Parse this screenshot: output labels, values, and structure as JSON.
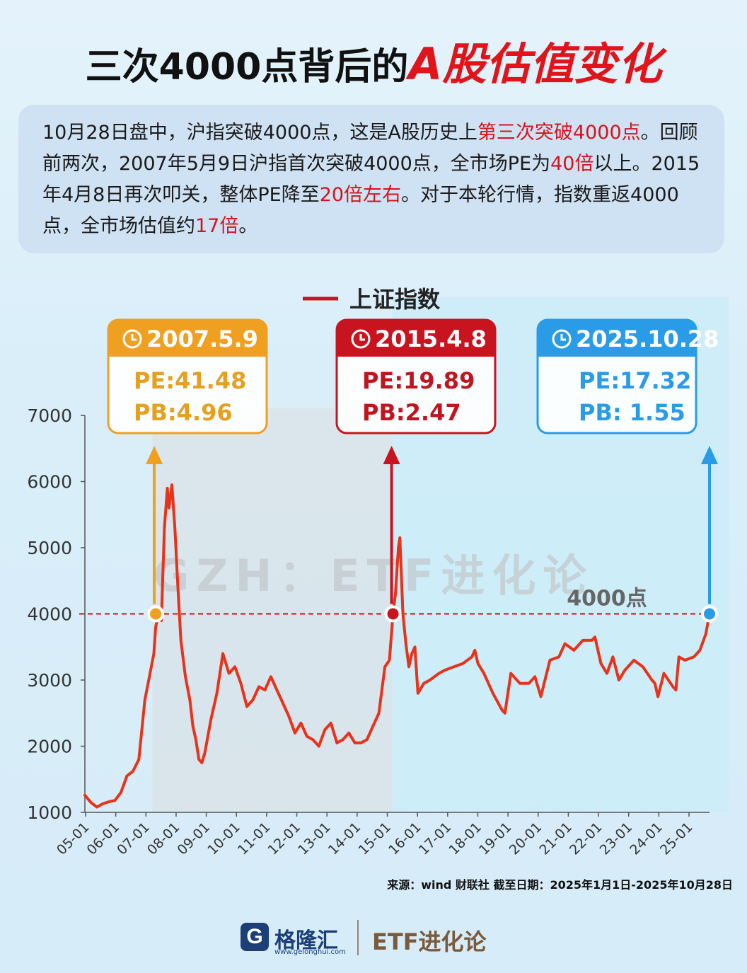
{
  "title": {
    "part1": "三次4000点背后的",
    "part2": "A股估值变化"
  },
  "intro": {
    "s1": "10月28日盘中，沪指突破4000点，这是A股历史上",
    "s2": "第三次突破4000点",
    "s3": "。回顾前两次，2007年5月9日沪指首次突破4000点，全市场PE为",
    "s4": "40倍",
    "s5": "以上。2015年4月8日再次叩关，整体PE降至",
    "s6": "20倍左右",
    "s7": "。对于本轮行情，指数重返4000点，全市场估值约",
    "s8": "17倍",
    "s9": "。"
  },
  "watermark": "GZH：ETF进化论",
  "threshold_label": "4000点",
  "callouts": [
    {
      "date": "2007.5.9",
      "pe": "PE:41.48",
      "pb": "PB:4.96",
      "color": "#f0a020",
      "text_color": "#e6a01e"
    },
    {
      "date": "2015.4.8",
      "pe": "PE:19.89",
      "pb": "PB:2.47",
      "color": "#c8141e",
      "text_color": "#c01520"
    },
    {
      "date": "2025.10.28",
      "pe": "PE:17.32",
      "pb": "PB: 1.55",
      "color": "#2a9be6",
      "text_color": "#2a9be6"
    }
  ],
  "colors": {
    "line": "#e8321a",
    "threshold": "#c8141e",
    "shade_2007": "#dcdcdc",
    "shade_2015": "#c9ecf8"
  },
  "chart_data": {
    "type": "line",
    "title": "",
    "xlabel": "",
    "ylabel": "",
    "legend": "上证指数",
    "legend_position": "top-center",
    "ylim": [
      1000,
      7000
    ],
    "yticks": [
      "7000",
      "6000",
      "5000",
      "4000",
      "3000",
      "2000",
      "1000"
    ],
    "categories": [
      "05-01",
      "06-01",
      "07-01",
      "08-01",
      "09-01",
      "10-01",
      "11-01",
      "12-01",
      "13-01",
      "14-01",
      "15-01",
      "16-01",
      "17-01",
      "18-01",
      "19-01",
      "20-01",
      "21-01",
      "22-01",
      "23-01",
      "24-01",
      "25-01"
    ],
    "threshold": 4000,
    "series": [
      {
        "name": "上证指数",
        "x": [
          2005.0,
          2005.2,
          2005.4,
          2005.6,
          2005.8,
          2006.0,
          2006.2,
          2006.4,
          2006.6,
          2006.8,
          2007.0,
          2007.15,
          2007.3,
          2007.36,
          2007.45,
          2007.55,
          2007.65,
          2007.75,
          2007.8,
          2007.9,
          2008.0,
          2008.1,
          2008.2,
          2008.35,
          2008.5,
          2008.6,
          2008.7,
          2008.8,
          2008.9,
          2009.0,
          2009.2,
          2009.4,
          2009.6,
          2009.8,
          2010.0,
          2010.2,
          2010.4,
          2010.6,
          2010.8,
          2011.0,
          2011.2,
          2011.4,
          2011.6,
          2011.8,
          2012.0,
          2012.2,
          2012.4,
          2012.6,
          2012.8,
          2013.0,
          2013.2,
          2013.4,
          2013.6,
          2013.8,
          2014.0,
          2014.2,
          2014.4,
          2014.6,
          2014.8,
          2015.0,
          2015.15,
          2015.27,
          2015.35,
          2015.45,
          2015.5,
          2015.6,
          2015.7,
          2015.8,
          2015.9,
          2016.0,
          2016.1,
          2016.3,
          2016.5,
          2016.8,
          2017.0,
          2017.3,
          2017.6,
          2017.9,
          2018.0,
          2018.1,
          2018.3,
          2018.6,
          2018.9,
          2019.0,
          2019.2,
          2019.5,
          2019.8,
          2020.0,
          2020.2,
          2020.5,
          2020.8,
          2021.0,
          2021.3,
          2021.6,
          2021.9,
          2022.0,
          2022.2,
          2022.4,
          2022.6,
          2022.8,
          2023.0,
          2023.3,
          2023.6,
          2023.9,
          2024.0,
          2024.1,
          2024.3,
          2024.6,
          2024.7,
          2024.8,
          2025.0,
          2025.3,
          2025.5,
          2025.7,
          2025.82
        ],
        "values": [
          1260,
          1150,
          1080,
          1130,
          1160,
          1180,
          1300,
          1550,
          1620,
          1800,
          2700,
          3050,
          3400,
          3800,
          4000,
          3900,
          5300,
          5900,
          5600,
          5950,
          5300,
          4400,
          3600,
          3050,
          2700,
          2300,
          2100,
          1800,
          1750,
          1900,
          2400,
          2800,
          3400,
          3100,
          3200,
          2950,
          2600,
          2700,
          2900,
          2850,
          3050,
          2850,
          2650,
          2450,
          2200,
          2350,
          2150,
          2100,
          2000,
          2250,
          2350,
          2050,
          2100,
          2200,
          2050,
          2050,
          2100,
          2300,
          2500,
          3200,
          3300,
          4000,
          4300,
          5000,
          5150,
          4000,
          3550,
          3200,
          3400,
          3500,
          2800,
          2950,
          3000,
          3100,
          3150,
          3200,
          3250,
          3350,
          3450,
          3250,
          3100,
          2800,
          2550,
          2500,
          3100,
          2950,
          2950,
          3050,
          2750,
          3300,
          3350,
          3550,
          3450,
          3600,
          3600,
          3650,
          3250,
          3100,
          3350,
          3000,
          3150,
          3300,
          3200,
          3000,
          2950,
          2750,
          3100,
          2900,
          2850,
          3350,
          3300,
          3350,
          3450,
          3700,
          4000
        ]
      }
    ]
  },
  "source": "来源：wind 财联社  截至日期：2025年1月1日-2025年10月28日",
  "logo": {
    "letter": "G",
    "name": "格隆汇",
    "url": "www.gelonghui.com",
    "brand": "ETF进化论"
  }
}
